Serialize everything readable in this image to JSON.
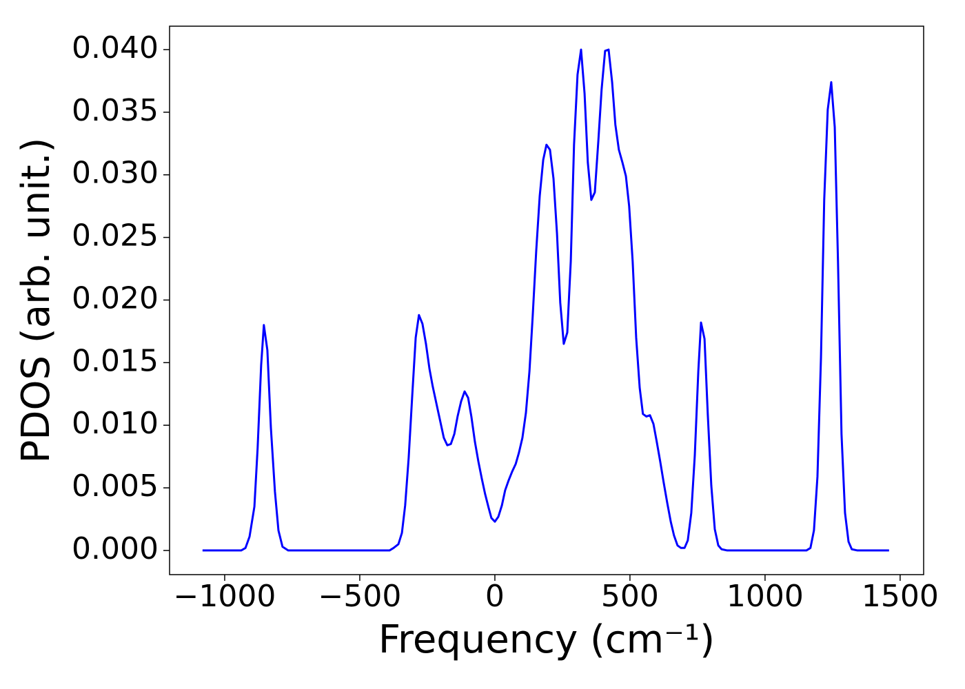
{
  "chart_data": {
    "type": "line",
    "xlabel": "Frequency (cm⁻¹)",
    "ylabel": "PDOS (arb. unit.)",
    "color": "#0000ff",
    "xlim": [
      -1204,
      1587
    ],
    "ylim": [
      -0.00193,
      0.04187
    ],
    "xticks": [
      {
        "value": -1000,
        "label": "−1000"
      },
      {
        "value": -500,
        "label": "−500"
      },
      0,
      500,
      1000,
      1500
    ],
    "yticks": [
      {
        "value": 0,
        "label": "0.000"
      },
      {
        "value": 0.005,
        "label": "0.005"
      },
      {
        "value": 0.01,
        "label": "0.010"
      },
      {
        "value": 0.015,
        "label": "0.015"
      },
      {
        "value": 0.02,
        "label": "0.020"
      },
      {
        "value": 0.025,
        "label": "0.025"
      },
      {
        "value": 0.03,
        "label": "0.030"
      },
      {
        "value": 0.035,
        "label": "0.035"
      },
      {
        "value": 0.04,
        "label": "0.040"
      }
    ],
    "x": [
      -1082,
      -939,
      -923,
      -908,
      -890,
      -878,
      -865,
      -855,
      -842,
      -829,
      -814,
      -801,
      -786,
      -765,
      -390,
      -375,
      -357,
      -344,
      -332,
      -319,
      -306,
      -293,
      -281,
      -268,
      -255,
      -242,
      -230,
      -214,
      -202,
      -189,
      -176,
      -163,
      -150,
      -138,
      -125,
      -112,
      -99,
      -87,
      -74,
      -61,
      -48,
      -36,
      -23,
      -13,
      0,
      13,
      26,
      38,
      51,
      64,
      77,
      89,
      102,
      115,
      128,
      140,
      153,
      166,
      179,
      191,
      204,
      217,
      230,
      242,
      255,
      268,
      281,
      293,
      306,
      319,
      332,
      344,
      357,
      370,
      383,
      395,
      408,
      421,
      434,
      446,
      459,
      472,
      485,
      497,
      510,
      523,
      536,
      548,
      561,
      574,
      587,
      599,
      612,
      625,
      638,
      651,
      663,
      676,
      689,
      702,
      714,
      727,
      740,
      753,
      763,
      776,
      788,
      801,
      814,
      827,
      839,
      860,
      1153,
      1168,
      1181,
      1194,
      1207,
      1219,
      1232,
      1245,
      1258,
      1270,
      1283,
      1296,
      1309,
      1321,
      1342,
      1459
    ],
    "values": [
      0,
      0,
      0.0002,
      0.0011,
      0.0035,
      0.0082,
      0.0148,
      0.018,
      0.016,
      0.0098,
      0.0047,
      0.0016,
      0.0003,
      0,
      0,
      0.0002,
      0.0005,
      0.0014,
      0.0036,
      0.0074,
      0.0123,
      0.017,
      0.0188,
      0.0181,
      0.0165,
      0.0145,
      0.0131,
      0.0115,
      0.0103,
      0.009,
      0.0084,
      0.0085,
      0.0093,
      0.0107,
      0.0119,
      0.0127,
      0.0122,
      0.0107,
      0.0087,
      0.0071,
      0.0057,
      0.0045,
      0.0034,
      0.0026,
      0.0023,
      0.0027,
      0.0036,
      0.0048,
      0.0056,
      0.0063,
      0.0069,
      0.0078,
      0.009,
      0.011,
      0.0143,
      0.0187,
      0.0239,
      0.0283,
      0.0312,
      0.0324,
      0.032,
      0.0297,
      0.0253,
      0.0198,
      0.0165,
      0.0174,
      0.0231,
      0.0324,
      0.038,
      0.04,
      0.0365,
      0.031,
      0.028,
      0.0286,
      0.0327,
      0.0368,
      0.0399,
      0.04,
      0.0374,
      0.034,
      0.032,
      0.031,
      0.0299,
      0.0275,
      0.0231,
      0.017,
      0.013,
      0.0109,
      0.0107,
      0.0108,
      0.0101,
      0.0087,
      0.0071,
      0.0054,
      0.0038,
      0.0023,
      0.0012,
      0.0004,
      0.0002,
      0.0002,
      0.0008,
      0.003,
      0.0076,
      0.0143,
      0.0182,
      0.0169,
      0.0109,
      0.0052,
      0.0017,
      0.0004,
      0.0001,
      0,
      0,
      0.0002,
      0.0016,
      0.0059,
      0.0154,
      0.028,
      0.0352,
      0.0374,
      0.0338,
      0.0231,
      0.0093,
      0.003,
      0.0007,
      0.0001,
      0,
      0
    ]
  }
}
